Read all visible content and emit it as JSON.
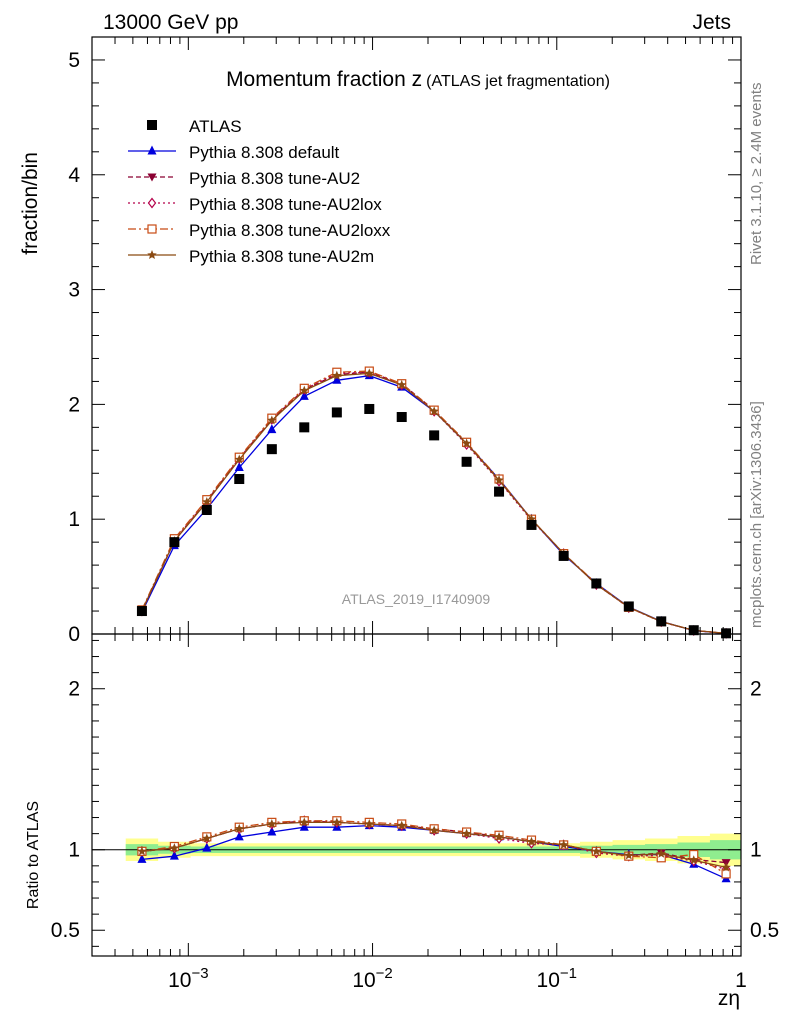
{
  "header": {
    "energy": "13000 GeV pp",
    "category": "Jets"
  },
  "side_text": {
    "rivet": "Rivet 3.1.10, ≥ 2.4M events",
    "mcplots": "mcplots.cern.ch [arXiv:1306.3436]"
  },
  "colors": {
    "data": "#000000",
    "default": "#0000dd",
    "au2": "#8b0032",
    "au2lox": "#b4004a",
    "au2loxx": "#c84b14",
    "au2m": "#8b4a12",
    "band_green": "#8fed8f",
    "band_yellow": "#ffff8f"
  },
  "chart_data": [
    {
      "type": "line",
      "title": "Momentum fraction z",
      "title_suffix": "(ATLAS jet fragmentation)",
      "ylabel": "fraction/bin",
      "xlabel": "zη",
      "watermark": "ATLAS_2019_I1740909",
      "x_scale": "log",
      "xlim": [
        0.0003,
        1
      ],
      "ylim": [
        0,
        5.2
      ],
      "y_ticks": [
        "0",
        "1",
        "2",
        "3",
        "4",
        "5"
      ],
      "legend_position": "top-left",
      "x": [
        0.00056,
        0.00084,
        0.00126,
        0.00189,
        0.00284,
        0.00426,
        0.0064,
        0.0096,
        0.0144,
        0.0216,
        0.0324,
        0.0486,
        0.0729,
        0.109,
        0.164,
        0.246,
        0.369,
        0.554,
        0.83
      ],
      "series": [
        {
          "name": "ATLAS",
          "marker": "square",
          "values": [
            0.2,
            0.8,
            1.08,
            1.35,
            1.61,
            1.8,
            1.93,
            1.96,
            1.89,
            1.73,
            1.5,
            1.24,
            0.95,
            0.68,
            0.44,
            0.24,
            0.11,
            0.033,
            0.006
          ]
        },
        {
          "name": "Pythia 8.308 default",
          "marker": "triangle-up",
          "values": [
            0.19,
            0.77,
            1.09,
            1.45,
            1.78,
            2.07,
            2.21,
            2.25,
            2.15,
            1.94,
            1.66,
            1.35,
            1.0,
            0.69,
            0.44,
            0.235,
            0.11,
            0.03,
            0.005
          ]
        },
        {
          "name": "Pythia 8.308 tune-AU2",
          "marker": "triangle-down",
          "values": [
            0.2,
            0.81,
            1.16,
            1.53,
            1.87,
            2.13,
            2.26,
            2.28,
            2.18,
            1.95,
            1.66,
            1.34,
            1.0,
            0.7,
            0.43,
            0.232,
            0.108,
            0.031,
            0.0055
          ]
        },
        {
          "name": "Pythia 8.308 tune-AU2lox",
          "marker": "diamond",
          "values": [
            0.2,
            0.82,
            1.16,
            1.53,
            1.87,
            2.13,
            2.27,
            2.28,
            2.17,
            1.94,
            1.65,
            1.33,
            0.99,
            0.7,
            0.43,
            0.23,
            0.106,
            0.03,
            0.0052
          ]
        },
        {
          "name": "Pythia 8.308 tune-AU2loxx",
          "marker": "open-square",
          "values": [
            0.21,
            0.83,
            1.17,
            1.54,
            1.88,
            2.14,
            2.28,
            2.29,
            2.18,
            1.95,
            1.67,
            1.35,
            1.0,
            0.7,
            0.44,
            0.232,
            0.107,
            0.032,
            0.005
          ]
        },
        {
          "name": "Pythia 8.308 tune-AU2m",
          "marker": "star",
          "values": [
            0.2,
            0.81,
            1.15,
            1.52,
            1.86,
            2.12,
            2.25,
            2.27,
            2.17,
            1.94,
            1.66,
            1.34,
            1.0,
            0.7,
            0.43,
            0.233,
            0.108,
            0.031,
            0.0053
          ]
        }
      ]
    },
    {
      "type": "line",
      "ylabel": "Ratio to ATLAS",
      "x_scale": "log",
      "xlim": [
        0.0003,
        1
      ],
      "ylim": [
        0.34,
        2.34
      ],
      "y_ticks": [
        "0.5",
        "1",
        "2"
      ],
      "x_ticks": [
        "10−3",
        "10−2",
        "10−1",
        "1"
      ],
      "reference_line": 1,
      "band_green_halfwidth": [
        0.035,
        0.025,
        0.02,
        0.02,
        0.02,
        0.02,
        0.02,
        0.02,
        0.02,
        0.02,
        0.02,
        0.02,
        0.02,
        0.02,
        0.025,
        0.03,
        0.035,
        0.045,
        0.06
      ],
      "band_yellow_halfwidth": [
        0.07,
        0.05,
        0.04,
        0.04,
        0.04,
        0.04,
        0.04,
        0.04,
        0.04,
        0.04,
        0.04,
        0.04,
        0.04,
        0.04,
        0.05,
        0.06,
        0.07,
        0.085,
        0.1
      ],
      "series": [
        {
          "name": "Pythia 8.308 default",
          "values": [
            0.94,
            0.96,
            1.01,
            1.08,
            1.11,
            1.14,
            1.14,
            1.15,
            1.14,
            1.12,
            1.1,
            1.08,
            1.05,
            1.02,
            0.99,
            0.97,
            0.97,
            0.91,
            0.82
          ]
        },
        {
          "name": "Pythia 8.308 tune-AU2",
          "values": [
            0.99,
            1.01,
            1.07,
            1.13,
            1.16,
            1.18,
            1.17,
            1.16,
            1.15,
            1.13,
            1.11,
            1.08,
            1.05,
            1.03,
            0.99,
            0.965,
            0.98,
            0.94,
            0.92
          ]
        },
        {
          "name": "Pythia 8.308 tune-AU2lox",
          "values": [
            0.99,
            1.01,
            1.07,
            1.13,
            1.16,
            1.18,
            1.17,
            1.16,
            1.15,
            1.12,
            1.1,
            1.07,
            1.04,
            1.03,
            0.98,
            0.96,
            0.965,
            0.93,
            0.88
          ]
        },
        {
          "name": "Pythia 8.308 tune-AU2loxx",
          "values": [
            0.99,
            1.02,
            1.08,
            1.14,
            1.17,
            1.18,
            1.18,
            1.17,
            1.16,
            1.13,
            1.11,
            1.09,
            1.06,
            1.03,
            0.99,
            0.96,
            0.95,
            0.97,
            0.85
          ]
        },
        {
          "name": "Pythia 8.308 tune-AU2m",
          "values": [
            0.99,
            1.01,
            1.07,
            1.13,
            1.16,
            1.17,
            1.17,
            1.16,
            1.15,
            1.12,
            1.1,
            1.08,
            1.05,
            1.03,
            0.99,
            0.965,
            0.975,
            0.935,
            0.89
          ]
        }
      ]
    }
  ]
}
